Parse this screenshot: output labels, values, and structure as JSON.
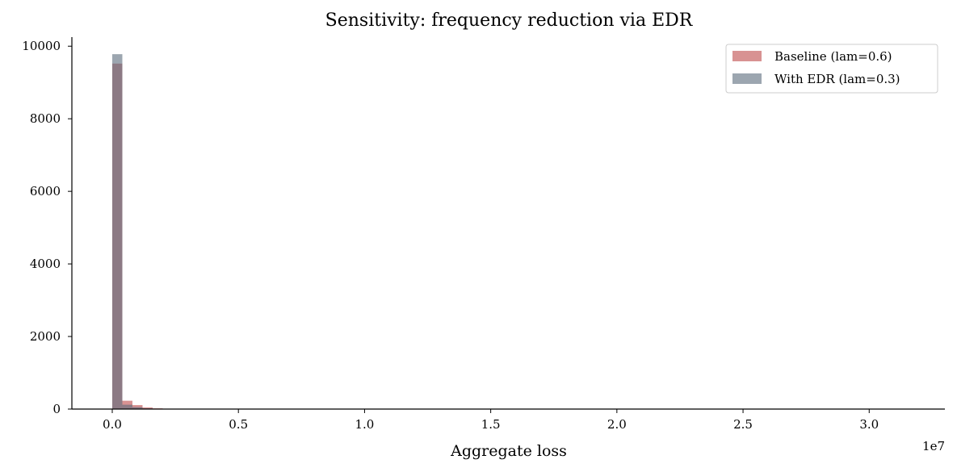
{
  "chart_data": {
    "type": "histogram",
    "title": "Sensitivity: frequency reduction via EDR",
    "xlabel": "Aggregate loss",
    "ylabel": "",
    "x_offset_label": "1e7",
    "xlim": [
      -1600000,
      33000000
    ],
    "ylim": [
      0,
      10250
    ],
    "xticks": [
      0,
      5000000,
      10000000,
      15000000,
      20000000,
      25000000,
      30000000
    ],
    "xtick_labels": [
      "0.0",
      "0.5",
      "1.0",
      "1.5",
      "2.0",
      "2.5",
      "3.0"
    ],
    "yticks": [
      0,
      2000,
      4000,
      6000,
      8000,
      10000
    ],
    "ytick_labels": [
      "0",
      "2000",
      "4000",
      "6000",
      "8000",
      "10000"
    ],
    "bin_width": 400000,
    "bin_start": 0,
    "grid": false,
    "legend_position": "top-right",
    "series": [
      {
        "name": "Baseline (lam=0.6)",
        "color": "#c86464",
        "opacity": 0.7,
        "counts": [
          9520,
          230,
          110,
          45,
          20,
          10,
          5,
          3,
          2,
          1,
          1,
          1
        ]
      },
      {
        "name": "With EDR (lam=0.3)",
        "color": "#5a6b7b",
        "opacity": 0.6,
        "counts": [
          9780,
          120,
          55,
          20,
          10,
          5,
          3,
          2,
          1,
          1
        ]
      }
    ]
  }
}
